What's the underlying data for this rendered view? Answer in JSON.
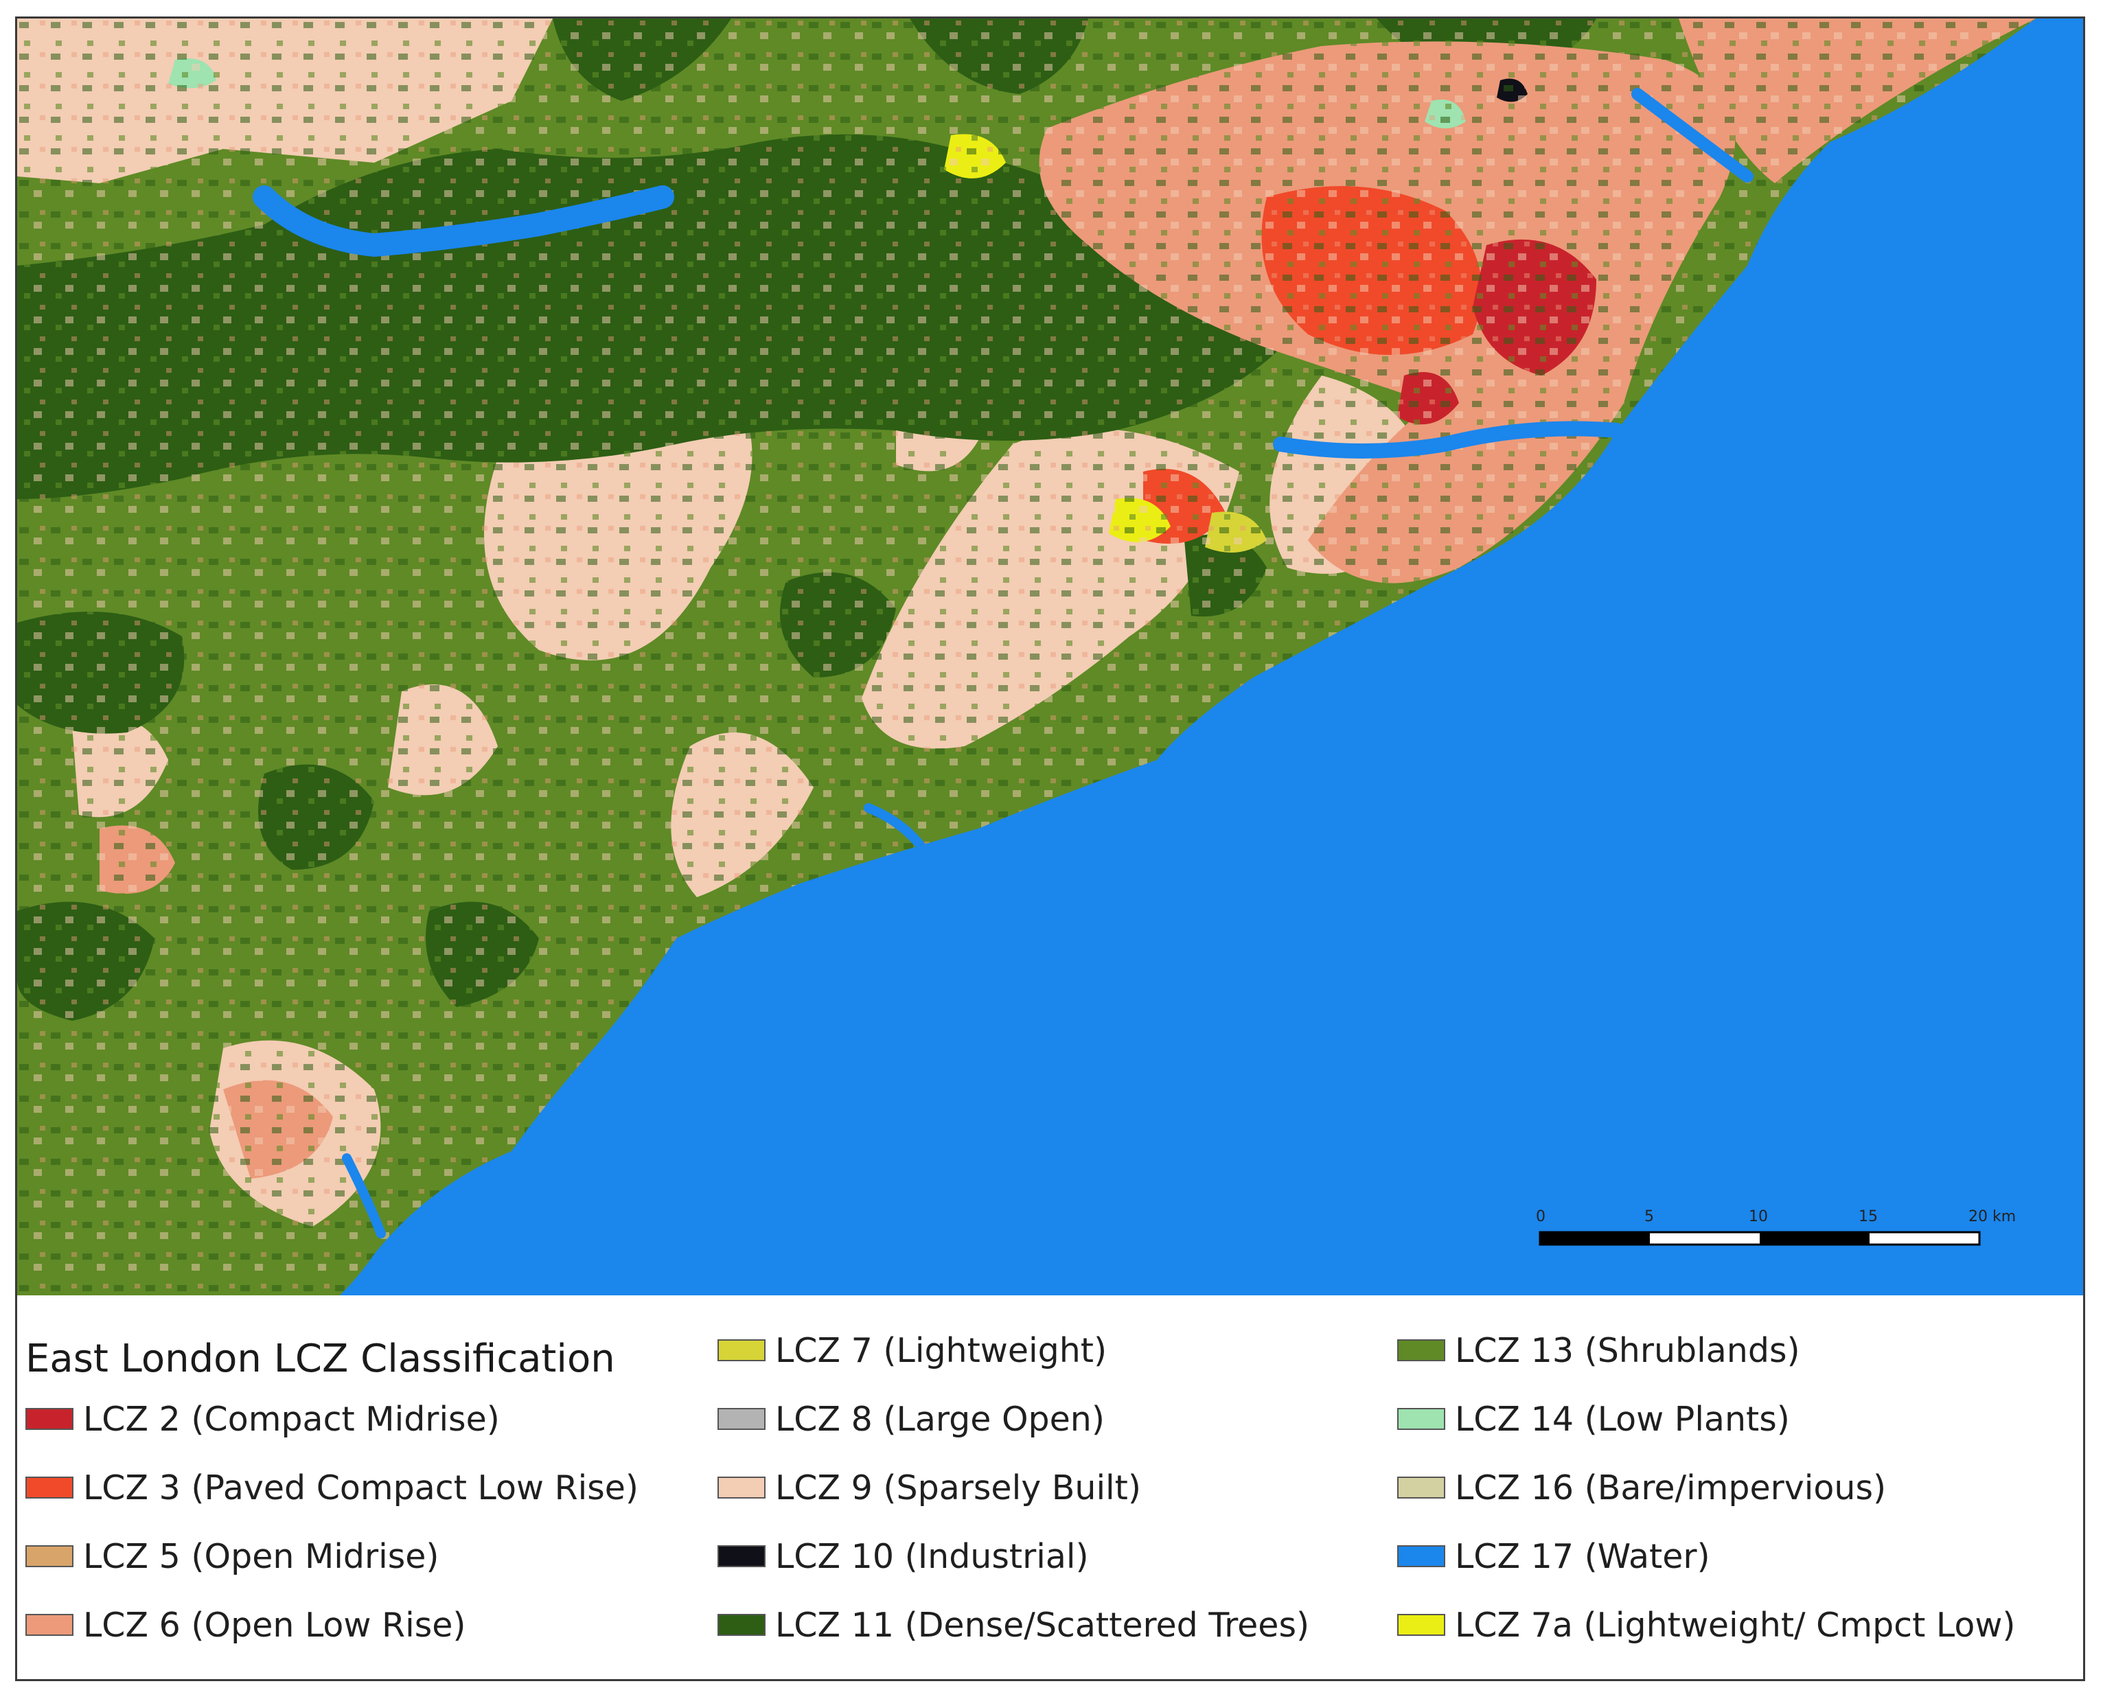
{
  "legend": {
    "title": "East London LCZ Classification",
    "items": [
      {
        "label": "LCZ 2 (Compact Midrise)",
        "color": "#c8232c"
      },
      {
        "label": "LCZ 3 (Paved Compact Low Rise)",
        "color": "#f04a2a"
      },
      {
        "label": "LCZ 5 (Open Midrise)",
        "color": "#d9a46a"
      },
      {
        "label": "LCZ 6 (Open Low Rise)",
        "color": "#ec9a7a"
      },
      {
        "label": "LCZ 7 (Lightweight)",
        "color": "#d6d436"
      },
      {
        "label": "LCZ 8 (Large Open)",
        "color": "#b3b3b3"
      },
      {
        "label": "LCZ 9 (Sparsely Built)",
        "color": "#f3cdb4"
      },
      {
        "label": "LCZ 10 (Industrial)",
        "color": "#101018"
      },
      {
        "label": "LCZ 11 (Dense/Scattered Trees)",
        "color": "#2d5e14"
      },
      {
        "label": "LCZ 13 (Shrublands)",
        "color": "#5f8a26"
      },
      {
        "label": "LCZ 14 (Low Plants)",
        "color": "#9ee3b0"
      },
      {
        "label": "LCZ 16 (Bare/impervious)",
        "color": "#d3d0a2"
      },
      {
        "label": "LCZ 17 (Water)",
        "color": "#1b86ec"
      },
      {
        "label": "LCZ 7a (Lightweight/ Cmpct Low)",
        "color": "#ebee14"
      }
    ]
  },
  "scale_bar": {
    "ticks": [
      "0",
      "5",
      "10",
      "15",
      "20 km"
    ]
  }
}
